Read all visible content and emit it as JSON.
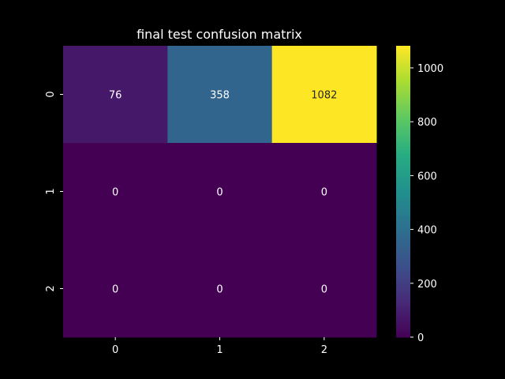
{
  "chart_data": {
    "type": "heatmap",
    "title": "final test confusion matrix",
    "xlabel": "",
    "ylabel": "",
    "x_categories": [
      "0",
      "1",
      "2"
    ],
    "y_categories": [
      "0",
      "1",
      "2"
    ],
    "matrix": [
      [
        76,
        358,
        1082
      ],
      [
        0,
        0,
        0
      ],
      [
        0,
        0,
        0
      ]
    ],
    "colorbar": {
      "min": 0,
      "max": 1082,
      "ticks": [
        0,
        200,
        400,
        600,
        800,
        1000
      ],
      "colormap": "viridis"
    },
    "grid": false
  }
}
